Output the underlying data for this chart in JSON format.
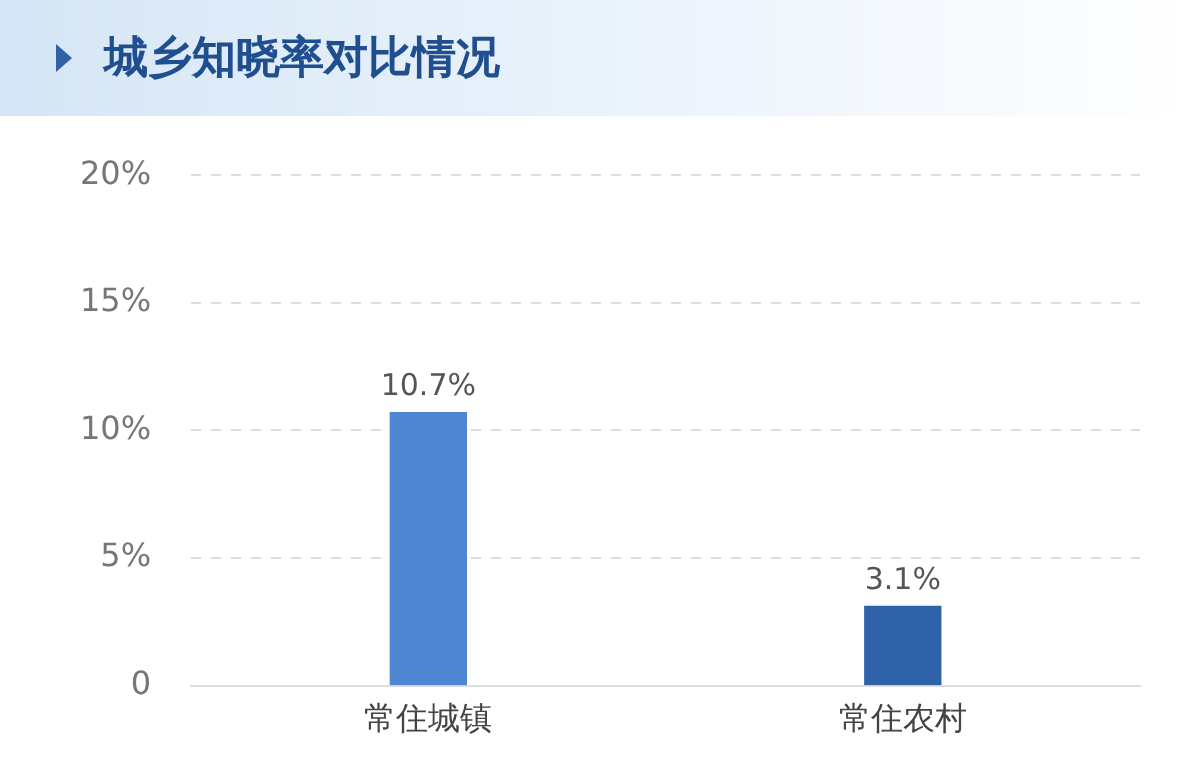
{
  "chart_data": {
    "type": "bar",
    "title": "城乡知晓率对比情况",
    "categories": [
      "常住城镇",
      "常住农村"
    ],
    "values": [
      10.7,
      3.1
    ],
    "colors": [
      "#4f86d1",
      "#2f62a8"
    ],
    "value_labels": [
      "10.7%",
      "3.1%"
    ],
    "ylim": [
      0,
      20
    ],
    "yticks": [
      0,
      {
        "value": 5,
        "label": "5%"
      },
      {
        "value": 10,
        "label": "10%"
      },
      {
        "value": 15,
        "label": "15%"
      },
      {
        "value": 20,
        "label": "20%"
      }
    ],
    "grid": "y",
    "legend": false
  }
}
